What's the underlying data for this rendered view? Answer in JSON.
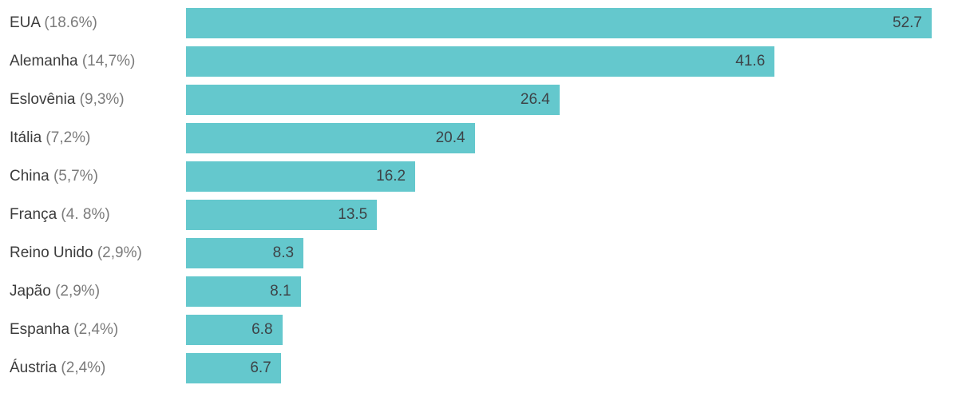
{
  "chart_data": {
    "type": "bar",
    "orientation": "horizontal",
    "title": "",
    "xlabel": "",
    "ylabel": "",
    "grid": false,
    "legend": false,
    "xlim": [
      0,
      52.7
    ],
    "categories": [
      "EUA",
      "Alemanha",
      "Eslovênia",
      "Itália",
      "China",
      "França",
      "Reino Unido",
      "Japão",
      "Espanha",
      "Áustria"
    ],
    "category_shares": [
      "(18.6%)",
      "(14,7%)",
      "(9,3%)",
      "(7,2%)",
      "(5,7%)",
      "(4. 8%)",
      "(2,9%)",
      "(2,9%)",
      "(2,4%)",
      "(2,4%)"
    ],
    "values": [
      52.7,
      41.6,
      26.4,
      20.4,
      16.2,
      13.5,
      8.3,
      8.1,
      6.8,
      6.7
    ],
    "value_labels": [
      "52.7",
      "41.6",
      "26.4",
      "20.4",
      "16.2",
      "13.5",
      "8.3",
      "8.1",
      "6.8",
      "6.7"
    ],
    "colors": {
      "bar": "#64c8cd",
      "label": "#3c3c3c",
      "share": "#7b7b7b",
      "value": "#3d4347",
      "background": "#ffffff"
    }
  }
}
